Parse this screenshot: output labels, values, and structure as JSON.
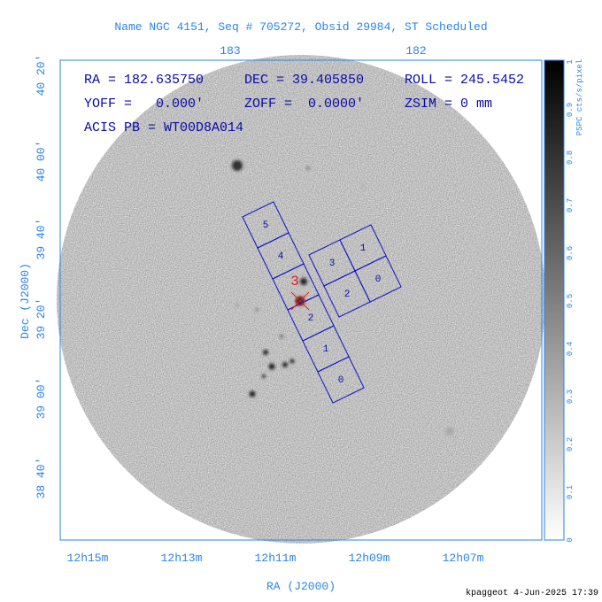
{
  "header": {
    "title": "Name NGC 4151, Seq # 705272, Obsid 29984, ST Scheduled"
  },
  "axes": {
    "top_labels": [
      "183",
      "182"
    ],
    "left_labels": [
      "40 20'",
      "40 00'",
      "39 40'",
      "39 20'",
      "39 00'",
      "38 40'"
    ],
    "bottom_labels": [
      "12h15m",
      "12h13m",
      "12h11m",
      "12h09m",
      "12h07m"
    ],
    "x_title": "RA (J2000)",
    "y_title": "Dec (J2000)"
  },
  "colorbar": {
    "label": "PSPC cts/s/pixel",
    "ticks": [
      "0",
      "0.1",
      "0.2",
      "0.3",
      "0.4",
      "0.5",
      "0.6",
      "0.7",
      "0.8",
      "0.9",
      "1"
    ]
  },
  "info": {
    "ra": "RA = 182.635750",
    "dec": "DEC = 39.405850",
    "roll": "ROLL = 245.5452",
    "yoff": "YOFF =   0.000'",
    "zoff": "ZOFF =  0.0000'",
    "zsim": "ZSIM = 0 mm",
    "acis": "ACIS PB = WT00D8A014"
  },
  "target_label": "3",
  "chips": {
    "s_array": [
      "5",
      "4",
      "2",
      "1",
      "0"
    ],
    "i_array": [
      "3",
      "1",
      "2",
      "0"
    ]
  },
  "footer": "kpaggeot  4-Jun-2025 17:39"
}
